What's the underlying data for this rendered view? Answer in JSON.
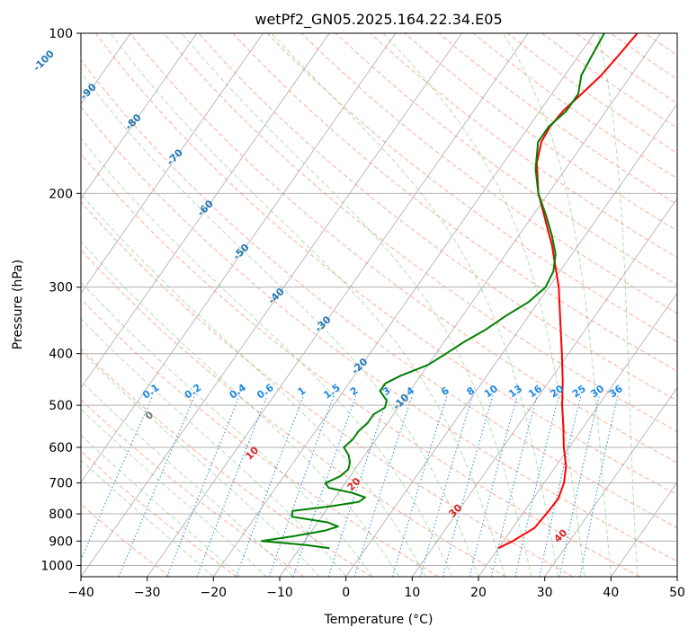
{
  "chart_data": {
    "type": "line",
    "diagram": "skew-t log-p",
    "title": "wetPf2_GN05.2025.164.22.34.E05",
    "xlabel": "Temperature (°C)",
    "ylabel": "Pressure (hPa)",
    "xlim": [
      -40,
      50
    ],
    "ylim": [
      1050,
      100
    ],
    "y_scale": "log",
    "grid": true,
    "x_ticks": [
      -40,
      -30,
      -20,
      -10,
      0,
      10,
      20,
      30,
      40,
      50
    ],
    "y_ticks": [
      100,
      200,
      300,
      400,
      500,
      600,
      700,
      800,
      900,
      1000
    ],
    "series": [
      {
        "color": "#ff0000",
        "points": [
          {
            "p": 928,
            "t": 20.0
          },
          {
            "p": 900,
            "t": 21.4
          },
          {
            "p": 850,
            "t": 23.3
          },
          {
            "p": 800,
            "t": 23.6
          },
          {
            "p": 750,
            "t": 23.8
          },
          {
            "p": 700,
            "t": 23.0
          },
          {
            "p": 650,
            "t": 21.5
          },
          {
            "p": 600,
            "t": 19.2
          },
          {
            "p": 550,
            "t": 17.0
          },
          {
            "p": 500,
            "t": 14.5
          },
          {
            "p": 450,
            "t": 12.0
          },
          {
            "p": 400,
            "t": 9.0
          },
          {
            "p": 350,
            "t": 5.5
          },
          {
            "p": 300,
            "t": 1.5
          },
          {
            "p": 250,
            "t": -4.0
          },
          {
            "p": 200,
            "t": -11.5
          },
          {
            "p": 175,
            "t": -15.0
          },
          {
            "p": 160,
            "t": -16.5
          },
          {
            "p": 150,
            "t": -16.8
          },
          {
            "p": 140,
            "t": -16.5
          },
          {
            "p": 130,
            "t": -15.5
          },
          {
            "p": 120,
            "t": -14.5
          },
          {
            "p": 110,
            "t": -14.0
          },
          {
            "p": 100,
            "t": -13.5
          }
        ]
      },
      {
        "color": "#008000",
        "points": [
          {
            "p": 928,
            "t": -5.5
          },
          {
            "p": 915,
            "t": -9.5
          },
          {
            "p": 900,
            "t": -16.5
          },
          {
            "p": 880,
            "t": -12.0
          },
          {
            "p": 860,
            "t": -8.0
          },
          {
            "p": 845,
            "t": -6.5
          },
          {
            "p": 830,
            "t": -8.5
          },
          {
            "p": 810,
            "t": -14.5
          },
          {
            "p": 790,
            "t": -15.0
          },
          {
            "p": 775,
            "t": -10.0
          },
          {
            "p": 760,
            "t": -6.0
          },
          {
            "p": 745,
            "t": -5.5
          },
          {
            "p": 730,
            "t": -8.0
          },
          {
            "p": 715,
            "t": -12.0
          },
          {
            "p": 700,
            "t": -13.0
          },
          {
            "p": 680,
            "t": -11.5
          },
          {
            "p": 660,
            "t": -11.0
          },
          {
            "p": 640,
            "t": -11.5
          },
          {
            "p": 620,
            "t": -12.5
          },
          {
            "p": 600,
            "t": -14.0
          },
          {
            "p": 580,
            "t": -13.5
          },
          {
            "p": 560,
            "t": -13.5
          },
          {
            "p": 540,
            "t": -13.0
          },
          {
            "p": 520,
            "t": -13.0
          },
          {
            "p": 505,
            "t": -12.0
          },
          {
            "p": 490,
            "t": -12.5
          },
          {
            "p": 470,
            "t": -14.5
          },
          {
            "p": 455,
            "t": -14.5
          },
          {
            "p": 440,
            "t": -13.0
          },
          {
            "p": 420,
            "t": -10.0
          },
          {
            "p": 400,
            "t": -8.5
          },
          {
            "p": 380,
            "t": -7.0
          },
          {
            "p": 360,
            "t": -5.0
          },
          {
            "p": 340,
            "t": -3.5
          },
          {
            "p": 320,
            "t": -1.5
          },
          {
            "p": 300,
            "t": -0.5
          },
          {
            "p": 280,
            "t": -1.0
          },
          {
            "p": 260,
            "t": -2.5
          },
          {
            "p": 240,
            "t": -5.0
          },
          {
            "p": 220,
            "t": -8.0
          },
          {
            "p": 200,
            "t": -11.5
          },
          {
            "p": 180,
            "t": -14.5
          },
          {
            "p": 160,
            "t": -17.0
          },
          {
            "p": 150,
            "t": -17.0
          },
          {
            "p": 140,
            "t": -16.0
          },
          {
            "p": 130,
            "t": -16.0
          },
          {
            "p": 120,
            "t": -17.5
          },
          {
            "p": 110,
            "t": -18.0
          },
          {
            "p": 100,
            "t": -18.5
          }
        ]
      }
    ],
    "reference_lines": {
      "isotherms": {
        "color": "#888888",
        "label_color": "#1f77b4",
        "labels": [
          -100,
          -90,
          -80,
          -70,
          -60,
          -50,
          -40,
          -30,
          -20,
          -10
        ]
      },
      "dry_adiabats": {
        "color": "#fc9272",
        "label_color": "#d62728",
        "labels": [
          0,
          10,
          20,
          30,
          40
        ]
      },
      "moist_adiabats": {
        "color": "#74c476"
      },
      "mixing_ratio": {
        "color": "#1e88e5",
        "labels": [
          "0.1",
          "0.2",
          "0.4",
          "0.6",
          "1",
          "1.5",
          "2",
          "3",
          "4",
          "6",
          "8",
          "10",
          "13",
          "16",
          "20",
          "25",
          "30",
          "36"
        ]
      }
    }
  }
}
